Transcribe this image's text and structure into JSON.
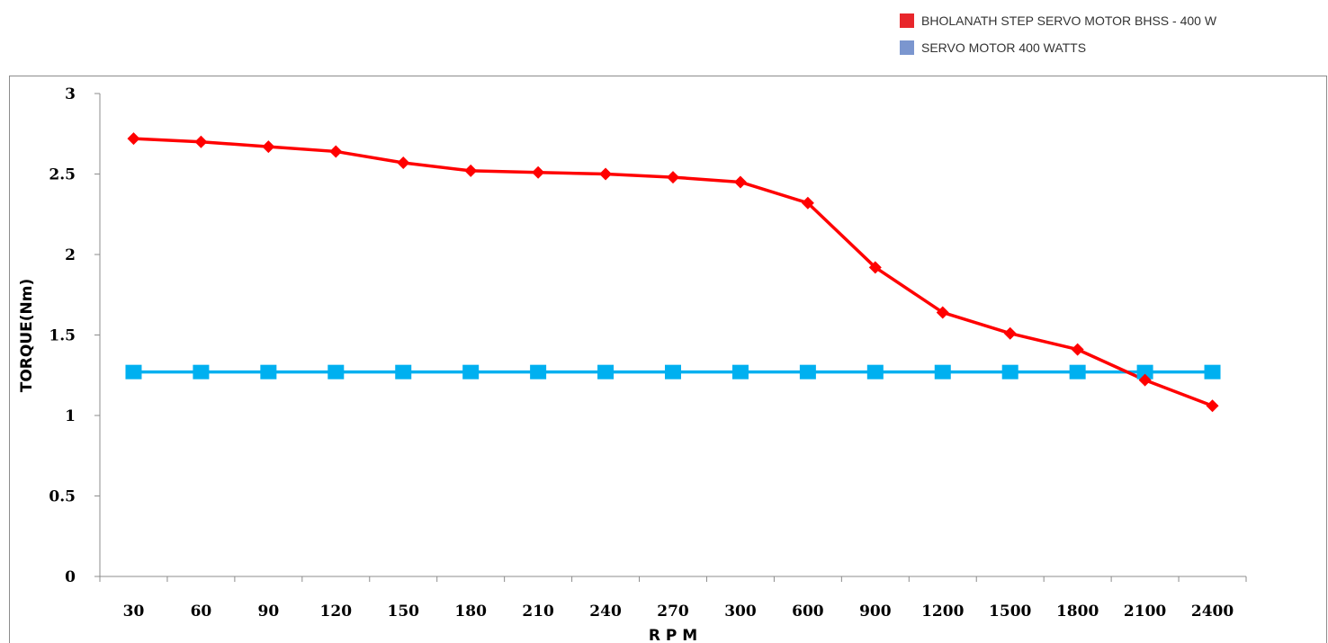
{
  "legend": {
    "items": [
      {
        "label": "BHOLANATH STEP SERVO MOTOR BHSS - 400 W",
        "color": "#e8262b"
      },
      {
        "label": "SERVO MOTOR 400 WATTS",
        "color": "#7b96cf"
      }
    ]
  },
  "chart_data": {
    "type": "line",
    "title": "",
    "xlabel": "R P M",
    "ylabel": "TORQUE(Nm)",
    "categories": [
      "30",
      "60",
      "90",
      "120",
      "150",
      "180",
      "210",
      "240",
      "270",
      "300",
      "600",
      "900",
      "1200",
      "1500",
      "1800",
      "2100",
      "2400"
    ],
    "ylim": [
      0,
      3
    ],
    "yticks": [
      "0",
      "0.5",
      "1",
      "1.5",
      "2",
      "2.5",
      "3"
    ],
    "grid": false,
    "legend_position": "top-right",
    "series": [
      {
        "name": "BHOLANATH STEP SERVO MOTOR BHSS - 400 W",
        "color": "#ff0000",
        "marker": "diamond",
        "values": [
          2.72,
          2.7,
          2.67,
          2.64,
          2.57,
          2.52,
          2.51,
          2.5,
          2.48,
          2.45,
          2.32,
          1.92,
          1.64,
          1.51,
          1.41,
          1.22,
          1.06
        ]
      },
      {
        "name": "SERVO MOTOR 400 WATTS",
        "color": "#00b0f0",
        "marker": "square",
        "values": [
          1.27,
          1.27,
          1.27,
          1.27,
          1.27,
          1.27,
          1.27,
          1.27,
          1.27,
          1.27,
          1.27,
          1.27,
          1.27,
          1.27,
          1.27,
          1.27,
          1.27
        ]
      }
    ]
  }
}
